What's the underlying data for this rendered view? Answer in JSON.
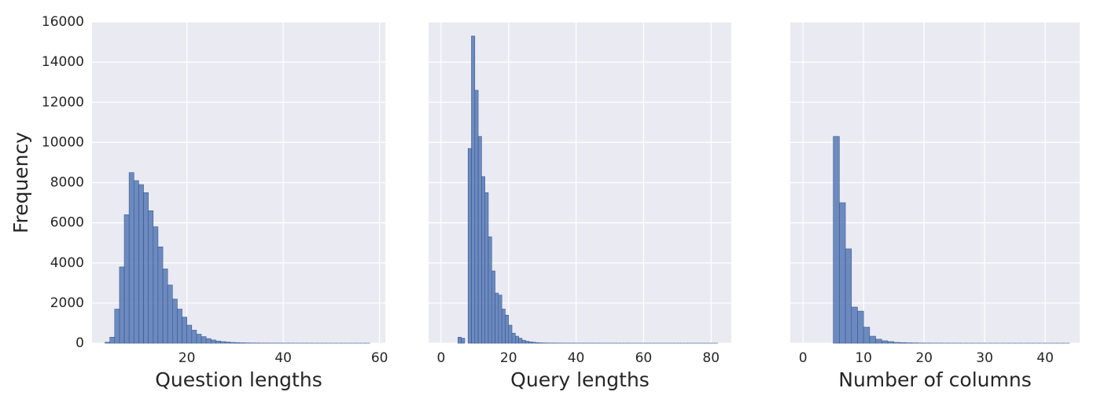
{
  "chart_data": [
    {
      "type": "histogram",
      "xlabel": "Question lengths",
      "ylabel": "Frequency",
      "color": "#4c72b0",
      "grid": true,
      "bins": [
        3,
        4,
        5,
        6,
        7,
        8,
        9,
        10,
        11,
        12,
        13,
        14,
        15,
        16,
        17,
        18,
        19,
        20,
        21,
        22,
        23,
        24,
        25,
        26,
        27,
        28,
        29,
        30,
        31,
        32,
        33,
        34,
        35,
        36,
        37,
        38,
        39,
        40,
        41,
        42,
        43,
        44,
        45,
        46,
        47,
        48,
        49,
        50,
        51,
        52,
        53,
        54,
        55,
        56,
        57,
        58
      ],
      "counts": [
        50,
        300,
        1700,
        3800,
        6400,
        8500,
        8100,
        7900,
        7500,
        6600,
        5800,
        4800,
        3700,
        2900,
        2200,
        1700,
        1300,
        900,
        650,
        450,
        330,
        230,
        160,
        110,
        80,
        60,
        40,
        30,
        20,
        15,
        12,
        10,
        8,
        7,
        6,
        5,
        5,
        4,
        4,
        3,
        3,
        3,
        2,
        2,
        2,
        2,
        1,
        1,
        1,
        1,
        1,
        1,
        1,
        1,
        1
      ],
      "xlim": [
        0.3,
        61.2
      ],
      "xticks": [
        20,
        40,
        60
      ],
      "ylim": [
        0,
        16000
      ],
      "yticks": [
        0,
        2000,
        4000,
        6000,
        8000,
        10000,
        12000,
        14000,
        16000
      ]
    },
    {
      "type": "histogram",
      "xlabel": "Query lengths",
      "color": "#4c72b0",
      "grid": true,
      "bins": [
        4,
        5,
        6,
        7,
        8,
        9,
        10,
        11,
        12,
        13,
        14,
        15,
        16,
        17,
        18,
        19,
        20,
        21,
        22,
        23,
        24,
        25,
        26,
        27,
        28,
        29,
        30,
        31,
        32,
        33,
        34,
        35,
        36,
        37,
        38,
        39,
        40,
        41,
        42,
        43,
        44,
        45,
        46,
        47,
        48,
        49,
        50,
        51,
        52,
        53,
        54,
        55,
        56,
        57,
        58,
        59,
        60,
        61,
        62,
        63,
        64,
        65,
        66,
        67,
        68,
        69,
        70,
        71,
        72,
        73,
        74,
        75,
        76,
        77,
        78,
        79,
        80,
        81,
        82
      ],
      "counts": [
        0,
        300,
        250,
        0,
        9700,
        15300,
        12600,
        10300,
        8300,
        7500,
        5300,
        3600,
        2500,
        2400,
        1700,
        1400,
        900,
        500,
        350,
        250,
        150,
        100,
        70,
        50,
        30,
        20,
        15,
        12,
        10,
        9,
        8,
        7,
        6,
        5,
        5,
        5,
        4,
        4,
        4,
        3,
        3,
        3,
        3,
        2,
        2,
        2,
        2,
        2,
        2,
        2,
        2,
        2,
        1,
        1,
        1,
        1,
        1,
        1,
        1,
        1,
        1,
        1,
        1,
        1,
        1,
        1,
        1,
        1,
        1,
        1,
        1,
        1,
        1,
        1,
        1,
        1,
        1,
        1
      ],
      "xlim": [
        -3.7,
        86
      ],
      "xticks": [
        0,
        20,
        40,
        60,
        80
      ],
      "ylim": [
        0,
        16000
      ],
      "yticks": [
        0,
        2000,
        4000,
        6000,
        8000,
        10000,
        12000,
        14000,
        16000
      ]
    },
    {
      "type": "histogram",
      "xlabel": "Number of columns",
      "color": "#4c72b0",
      "grid": true,
      "bins": [
        0,
        1,
        2,
        3,
        4,
        5,
        6,
        7,
        8,
        9,
        10,
        11,
        12,
        13,
        14,
        15,
        16,
        17,
        18,
        19,
        20,
        21,
        22,
        23,
        24,
        25,
        26,
        27,
        28,
        29,
        30,
        31,
        32,
        33,
        34,
        35,
        36,
        37,
        38,
        39,
        40,
        41,
        42,
        43,
        44
      ],
      "counts": [
        0,
        0,
        0,
        0,
        0,
        10300,
        7000,
        4700,
        1800,
        1600,
        800,
        350,
        200,
        120,
        80,
        40,
        30,
        20,
        15,
        10,
        8,
        6,
        5,
        4,
        3,
        3,
        2,
        2,
        2,
        2,
        1,
        1,
        1,
        1,
        1,
        1,
        1,
        1,
        1,
        1,
        1,
        1,
        1,
        1
      ],
      "xlim": [
        -2.1,
        45.7
      ],
      "xticks": [
        0,
        10,
        20,
        30,
        40
      ],
      "ylim": [
        0,
        16000
      ],
      "yticks": [
        0,
        2000,
        4000,
        6000,
        8000,
        10000,
        12000,
        14000,
        16000
      ]
    }
  ]
}
